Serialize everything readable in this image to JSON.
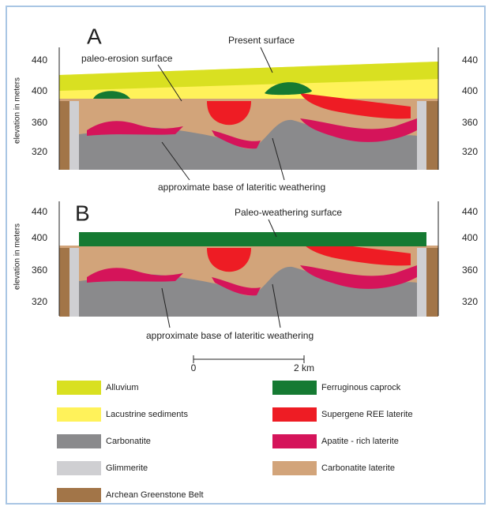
{
  "panel_a": {
    "label": "A",
    "top_label": "Present surface",
    "surface_label": "paleo-erosion surface",
    "y_axis_label": "elevation in meters",
    "left_ticks": [
      440,
      400,
      360,
      320
    ],
    "right_ticks": [
      440,
      400,
      360,
      320
    ],
    "base_label": "approximate base of lateritic weathering"
  },
  "panel_b": {
    "label": "B",
    "top_label": "Paleo-weathering surface",
    "y_axis_label": "elevation in meters",
    "left_ticks": [
      440,
      400,
      360,
      320
    ],
    "right_ticks": [
      440,
      400,
      360,
      320
    ],
    "base_label": "approximate base of lateritic weathering"
  },
  "scale_bar": {
    "start": "0",
    "end": "2 km"
  },
  "legend": [
    {
      "label": "Alluvium",
      "color": "#d9e021"
    },
    {
      "label": "Lacustrine sediments",
      "color": "#fff25a"
    },
    {
      "label": "Carbonatite",
      "color": "#8a8a8c"
    },
    {
      "label": "Glimmerite",
      "color": "#cfcfd2"
    },
    {
      "label": "Archean Greenstone Belt",
      "color": "#a27548"
    },
    {
      "label": "Ferruginous caprock",
      "color": "#157a32"
    },
    {
      "label": "Supergene REE laterite",
      "color": "#ee1c24"
    },
    {
      "label": "Apatite - rich laterite",
      "color": "#d5145a"
    },
    {
      "label": "Carbonatite laterite",
      "color": "#d2a47a"
    }
  ]
}
